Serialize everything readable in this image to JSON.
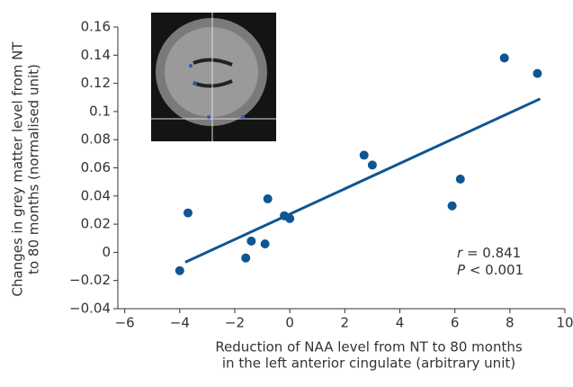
{
  "chart_data": {
    "type": "scatter",
    "x_label": [
      "Reduction of NAA level from NT to 80 months",
      "in the left anterior cingulate (arbitrary unit)"
    ],
    "y_label": [
      "Changes in grey matter level from NT",
      "to 80 months (normalised unit)"
    ],
    "x": [
      -4.0,
      -3.7,
      -1.6,
      -1.4,
      -0.9,
      -0.8,
      -0.2,
      0.0,
      2.7,
      3.0,
      5.9,
      6.2,
      7.8,
      9.0
    ],
    "values": [
      -0.013,
      0.028,
      -0.004,
      0.008,
      0.006,
      0.038,
      0.026,
      0.024,
      0.069,
      0.062,
      0.033,
      0.052,
      0.138,
      0.127
    ],
    "color": "#0f5592",
    "trendline": {
      "x": [
        -3.8,
        9.1
      ],
      "y": [
        -0.007,
        0.109
      ]
    },
    "annotations": [
      {
        "symbol": "r",
        "text": " = 0.841"
      },
      {
        "symbol": "P",
        "text": " < 0.001"
      }
    ],
    "xlim": [
      -6.25,
      10
    ],
    "xticks": [
      {
        "value": -6,
        "label": "−6"
      },
      {
        "value": -4,
        "label": "−4"
      },
      {
        "value": -2,
        "label": "−2"
      },
      0,
      2,
      4,
      6,
      8,
      10
    ],
    "ylim": [
      -0.04,
      0.16
    ],
    "yticks": [
      {
        "value": -0.04,
        "label": "−0.04"
      },
      {
        "value": -0.02,
        "label": "−0.02"
      },
      0,
      0.02,
      0.04,
      0.06,
      0.08,
      0.1,
      0.12,
      0.14,
      0.16
    ]
  }
}
